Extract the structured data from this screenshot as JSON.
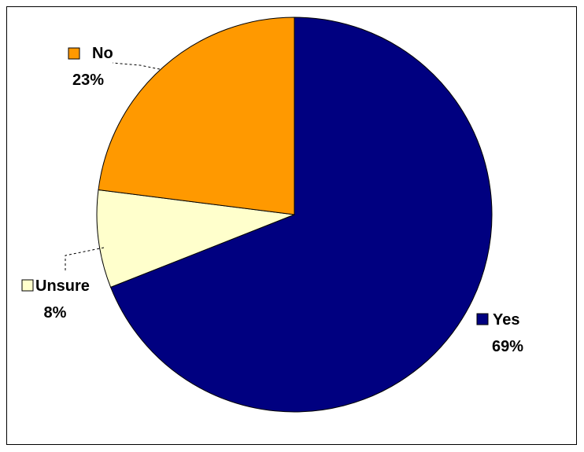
{
  "chart_data": {
    "type": "pie",
    "title": "",
    "slices": [
      {
        "label": "Yes",
        "value": 69,
        "value_label": "69%",
        "color": "#000080"
      },
      {
        "label": "Unsure",
        "value": 8,
        "value_label": "8%",
        "color": "#FFFFCC"
      },
      {
        "label": "No",
        "value": 23,
        "value_label": "23%",
        "color": "#FF9900"
      }
    ],
    "start_angle_deg": 0,
    "direction": "clockwise",
    "legend": "none",
    "data_labels": "outside-with-swatch"
  }
}
